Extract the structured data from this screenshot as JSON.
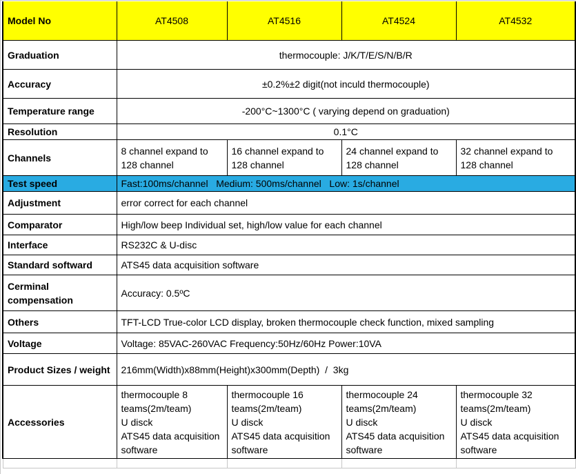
{
  "colors": {
    "header_bg": "#FFFF00",
    "highlight_bg": "#29ABE2",
    "border": "#000000",
    "light_grid": "#C6C6C6",
    "text": "#000000"
  },
  "table": {
    "header": {
      "label": "Model No",
      "models": [
        "AT4508",
        "AT4516",
        "AT4524",
        "AT4532"
      ]
    },
    "rows": [
      {
        "label": "Graduation",
        "type": "merged-center",
        "value": "thermocouple: J/K/T/E/S/N/B/R"
      },
      {
        "label": "Accuracy",
        "type": "merged-center",
        "value": "±0.2%±2 digit(not inculd thermocouple)"
      },
      {
        "label": "Temperature range",
        "type": "merged-center",
        "value": "-200°C~1300°C ( varying depend on graduation)"
      },
      {
        "label": "Resolution",
        "type": "merged-center",
        "value": "0.1°C"
      },
      {
        "label": "Channels",
        "type": "per-model",
        "values": [
          "8 channel expand to 128 channel",
          "16 channel expand to 128 channel",
          "24 channel expand to 128 channel",
          "32 channel expand to 128 channel"
        ]
      },
      {
        "label": "Test speed",
        "type": "merged-left",
        "highlighted": true,
        "value": "Fast:100ms/channel   Medium: 500ms/channel   Low: 1s/channel"
      },
      {
        "label": "Adjustment",
        "type": "merged-left",
        "value": "error correct for each channel"
      },
      {
        "label": "Comparator",
        "type": "merged-left",
        "value": "High/low beep Individual set, high/low value for each channel"
      },
      {
        "label": "Interface",
        "type": "merged-left",
        "value": "RS232C & U-disc"
      },
      {
        "label": "Standard softward",
        "type": "merged-left",
        "value": "ATS45 data acquisition software"
      },
      {
        "label": "Cerminal compensation",
        "type": "merged-left",
        "value": "Accuracy: 0.5ºC"
      },
      {
        "label": "Others",
        "type": "merged-left",
        "value": "TFT-LCD True-color LCD display, broken thermocouple check function, mixed sampling"
      },
      {
        "label": "Voltage",
        "type": "merged-left",
        "value": "Voltage: 85VAC-260VAC Frequency:50Hz/60Hz Power:10VA"
      },
      {
        "label": "Product Sizes / weight",
        "type": "merged-left",
        "value": "216mm(Width)x88mm(Height)x300mm(Depth)  /  3kg"
      },
      {
        "label": "Accessories",
        "type": "per-model",
        "values": [
          "thermocouple 8 teams(2m/team)\nU disck\nATS45 data acquisition software",
          "thermocouple 16 teams(2m/team)\nU disck\nATS45 data acquisition software",
          "thermocouple 24 teams(2m/team)\nU disck\nATS45 data acquisition software",
          "thermocouple 32 teams(2m/team)\nU disck\nATS45 data acquisition software"
        ]
      }
    ]
  }
}
